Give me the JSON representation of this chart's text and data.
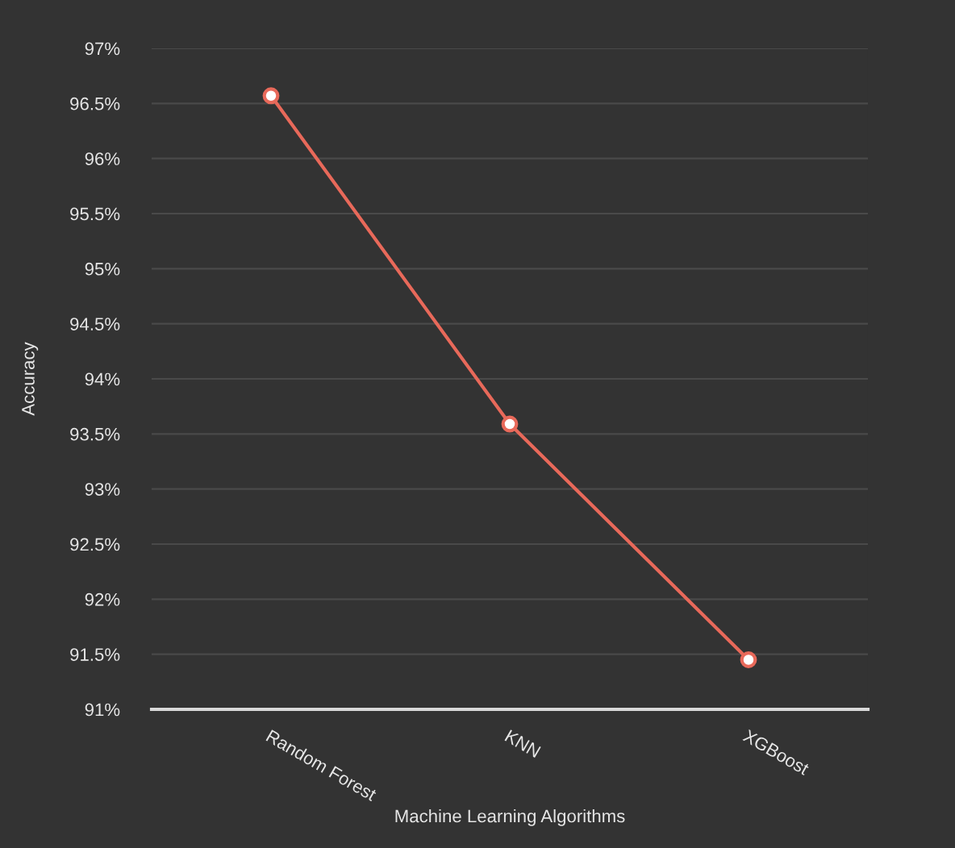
{
  "chart_data": {
    "type": "line",
    "xlabel": "Machine Learning Algorithms",
    "ylabel": "Accuracy",
    "categories": [
      "Random Forest",
      "KNN",
      "XGBoost"
    ],
    "series": [
      {
        "color": "#e8695a",
        "values": [
          96.57,
          93.59,
          91.45
        ]
      }
    ],
    "ylim": [
      91,
      97
    ],
    "yticks": [
      {
        "value": 91,
        "label": "91%"
      },
      {
        "value": 91.5,
        "label": "91.5%"
      },
      {
        "value": 92,
        "label": "92%"
      },
      {
        "value": 92.5,
        "label": "92.5%"
      },
      {
        "value": 93,
        "label": "93%"
      },
      {
        "value": 93.5,
        "label": "93.5%"
      },
      {
        "value": 94,
        "label": "94%"
      },
      {
        "value": 94.5,
        "label": "94.5%"
      },
      {
        "value": 95,
        "label": "95%"
      },
      {
        "value": 95.5,
        "label": "95.5%"
      },
      {
        "value": 96,
        "label": "96%"
      },
      {
        "value": 96.5,
        "label": "96.5%"
      },
      {
        "value": 97,
        "label": "97%"
      }
    ],
    "grid": "y",
    "marker": "circle",
    "line_style": "solid",
    "legend": false
  }
}
